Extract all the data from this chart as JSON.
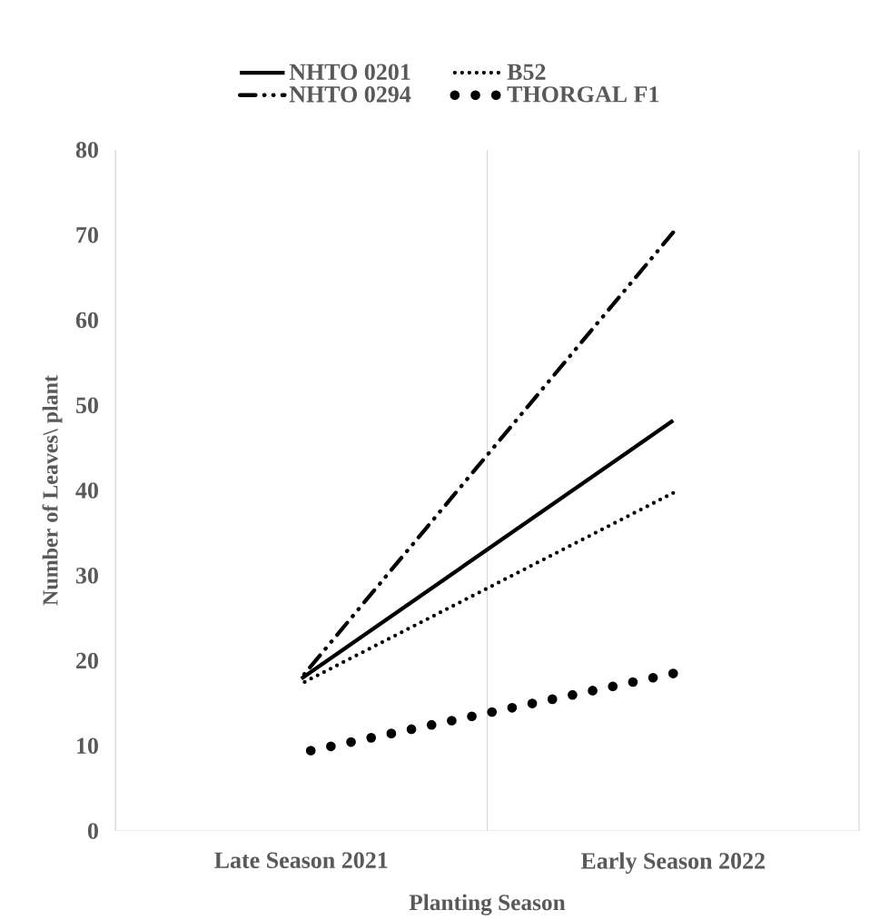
{
  "chart_data": {
    "type": "line",
    "xlabel": "Planting Season",
    "ylabel": "Number of Leaves\\ plant",
    "categories": [
      "Late Season 2021",
      "Early Season 2022"
    ],
    "series": [
      {
        "name": "NHTO 0201",
        "color": "#000000",
        "line_style": "solid",
        "values": [
          17.9,
          48.2
        ]
      },
      {
        "name": "B52",
        "color": "#000000",
        "line_style": "dotted",
        "values": [
          17.3,
          39.7
        ]
      },
      {
        "name": "NHTO 0294",
        "color": "#000000",
        "line_style": "dashdot",
        "values": [
          18.0,
          70.3
        ]
      },
      {
        "name": "THORGAL F1",
        "color": "#000000",
        "line_style": "dotted",
        "values": [
          9.2,
          18.5
        ]
      }
    ],
    "ylim": [
      0,
      80
    ],
    "yticks": [
      0,
      10,
      20,
      30,
      40,
      50,
      60,
      70,
      80
    ],
    "grid": "x",
    "legend": "top"
  }
}
